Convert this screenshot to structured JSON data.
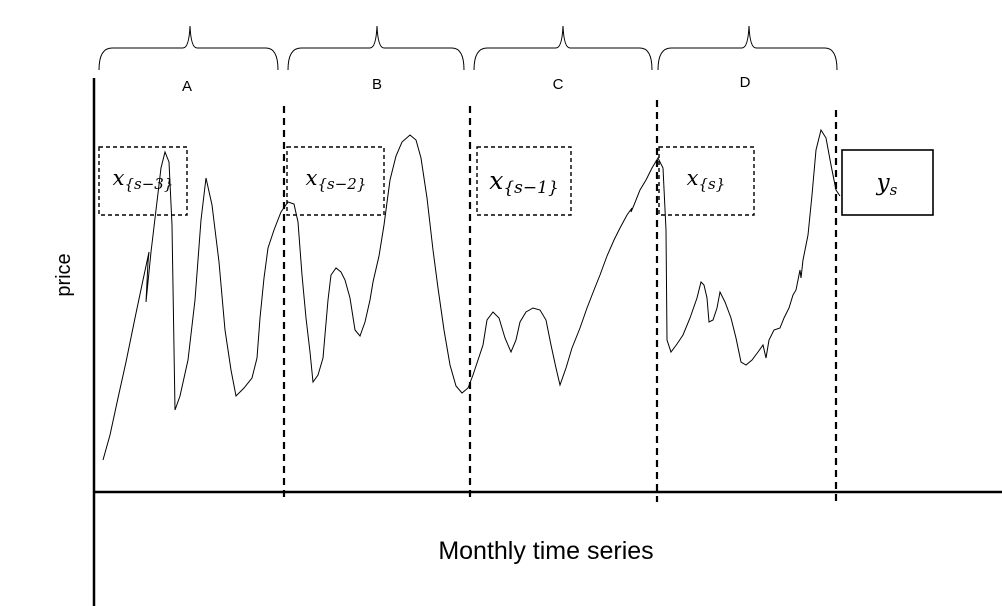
{
  "diagram": {
    "segments": [
      {
        "label": "A"
      },
      {
        "label": "B"
      },
      {
        "label": "C"
      },
      {
        "label": "D"
      }
    ],
    "inputs": [
      {
        "base": "x",
        "sub": "{s−3}"
      },
      {
        "base": "x",
        "sub": "{s−2}"
      },
      {
        "base": "x",
        "sub": "{s−1}"
      },
      {
        "base": "x",
        "sub": "{s}"
      }
    ],
    "output": {
      "base": "y",
      "sub": "s"
    },
    "y_axis_label": "price",
    "x_axis_label": "Monthly time series"
  }
}
